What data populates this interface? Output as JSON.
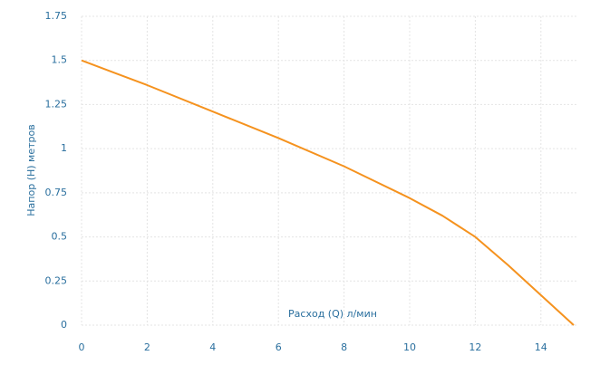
{
  "chart_data": {
    "type": "line",
    "x_label": "Расход (Q) л/мин",
    "y_label": "Напор (H) метров",
    "series": [
      {
        "color": "#f5921e",
        "x": [
          0,
          2,
          4,
          6,
          8,
          10,
          11,
          12,
          13,
          14,
          15
        ],
        "values": [
          1.5,
          1.36,
          1.21,
          1.06,
          0.9,
          0.72,
          0.62,
          0.5,
          0.34,
          0.17,
          0
        ]
      }
    ],
    "xlim": [
      0,
      15
    ],
    "xticks": [
      0,
      2,
      4,
      6,
      8,
      10,
      12,
      14
    ],
    "ylim": [
      0,
      1.75
    ],
    "yticks": [
      0,
      0.25,
      0.5,
      0.75,
      1,
      1.25,
      1.5,
      1.75
    ],
    "grid": true
  }
}
